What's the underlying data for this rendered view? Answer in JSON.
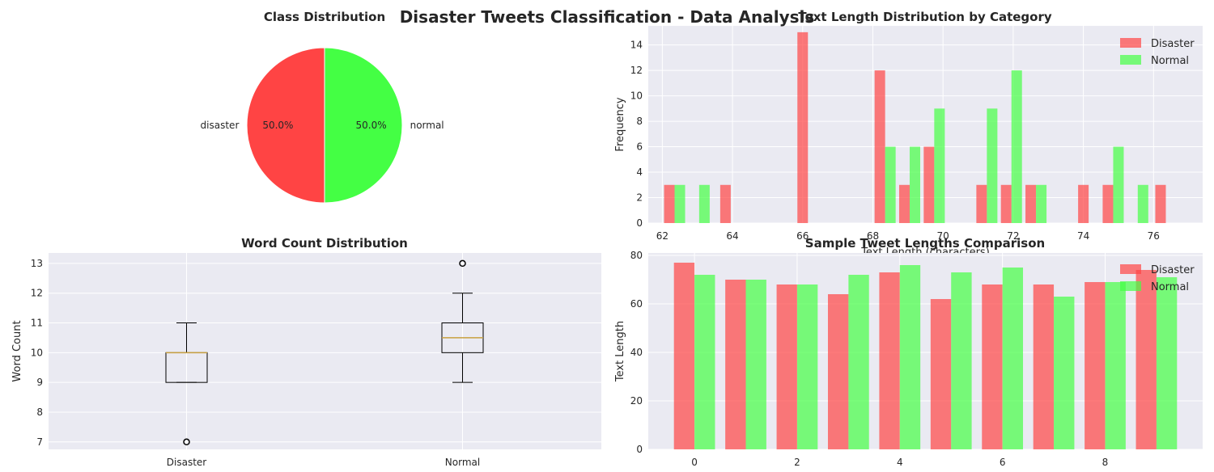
{
  "suptitle": "Disaster Tweets Classification - Data Analysis",
  "colors": {
    "disaster": "#ff4444",
    "normal": "#44ff44",
    "plot_bg": "#eaeaf2",
    "grid": "#ffffff",
    "median": "#c8a040"
  },
  "chart_data": [
    {
      "type": "pie",
      "title": "Class Distribution",
      "labels": [
        "disaster",
        "normal"
      ],
      "values": [
        50.0,
        50.0
      ],
      "autopct": [
        "50.0%",
        "50.0%"
      ]
    },
    {
      "type": "bar",
      "subtype": "histogram",
      "title": "Text Length Distribution by Category",
      "xlabel": "Text Length (characters)",
      "ylabel": "Frequency",
      "xlim": [
        61.6,
        77.4
      ],
      "ylim": [
        0,
        15.5
      ],
      "xticks": [
        62,
        64,
        66,
        68,
        70,
        72,
        74,
        76
      ],
      "yticks": [
        0,
        2,
        4,
        6,
        8,
        10,
        12,
        14
      ],
      "legend": "top-right",
      "series": [
        {
          "name": "Disaster",
          "bins": [
            {
              "x": 62.2,
              "y": 3
            },
            {
              "x": 63.8,
              "y": 3
            },
            {
              "x": 66.0,
              "y": 15
            },
            {
              "x": 68.2,
              "y": 12
            },
            {
              "x": 68.9,
              "y": 3
            },
            {
              "x": 69.6,
              "y": 6
            },
            {
              "x": 71.1,
              "y": 3
            },
            {
              "x": 71.8,
              "y": 3
            },
            {
              "x": 72.5,
              "y": 3
            },
            {
              "x": 74.0,
              "y": 3
            },
            {
              "x": 74.7,
              "y": 3
            },
            {
              "x": 76.2,
              "y": 3
            }
          ]
        },
        {
          "name": "Normal",
          "bins": [
            {
              "x": 62.5,
              "y": 3
            },
            {
              "x": 63.2,
              "y": 3
            },
            {
              "x": 68.5,
              "y": 6
            },
            {
              "x": 69.2,
              "y": 6
            },
            {
              "x": 69.9,
              "y": 9
            },
            {
              "x": 71.4,
              "y": 9
            },
            {
              "x": 72.1,
              "y": 12
            },
            {
              "x": 72.8,
              "y": 3
            },
            {
              "x": 75.0,
              "y": 6
            },
            {
              "x": 75.7,
              "y": 3
            }
          ]
        }
      ]
    },
    {
      "type": "box",
      "title": "Word Count Distribution",
      "ylabel": "Word Count",
      "categories": [
        "Disaster",
        "Normal"
      ],
      "ylim": [
        6.75,
        13.35
      ],
      "yticks": [
        7,
        8,
        9,
        10,
        11,
        12,
        13
      ],
      "boxes": [
        {
          "whislo": 9,
          "q1": 9,
          "med": 10,
          "q3": 10,
          "whishi": 11,
          "fliers": [
            7
          ]
        },
        {
          "whislo": 9,
          "q1": 10,
          "med": 10.5,
          "q3": 11,
          "whishi": 12,
          "fliers": [
            13
          ]
        }
      ]
    },
    {
      "type": "bar",
      "title": "Sample Tweet Lengths Comparison",
      "ylabel": "Text Length",
      "x": [
        0,
        1,
        2,
        3,
        4,
        5,
        6,
        7,
        8,
        9
      ],
      "xticks": [
        0,
        2,
        4,
        6,
        8
      ],
      "yticks": [
        0,
        20,
        40,
        60,
        80
      ],
      "xlim": [
        -0.9,
        9.9
      ],
      "ylim": [
        0,
        81
      ],
      "legend": "top-right",
      "series": [
        {
          "name": "Disaster",
          "values": [
            77,
            70,
            68,
            64,
            73,
            62,
            68,
            68,
            69,
            74
          ]
        },
        {
          "name": "Normal",
          "values": [
            72,
            70,
            68,
            72,
            76,
            73,
            75,
            63,
            69,
            71
          ]
        }
      ]
    }
  ]
}
